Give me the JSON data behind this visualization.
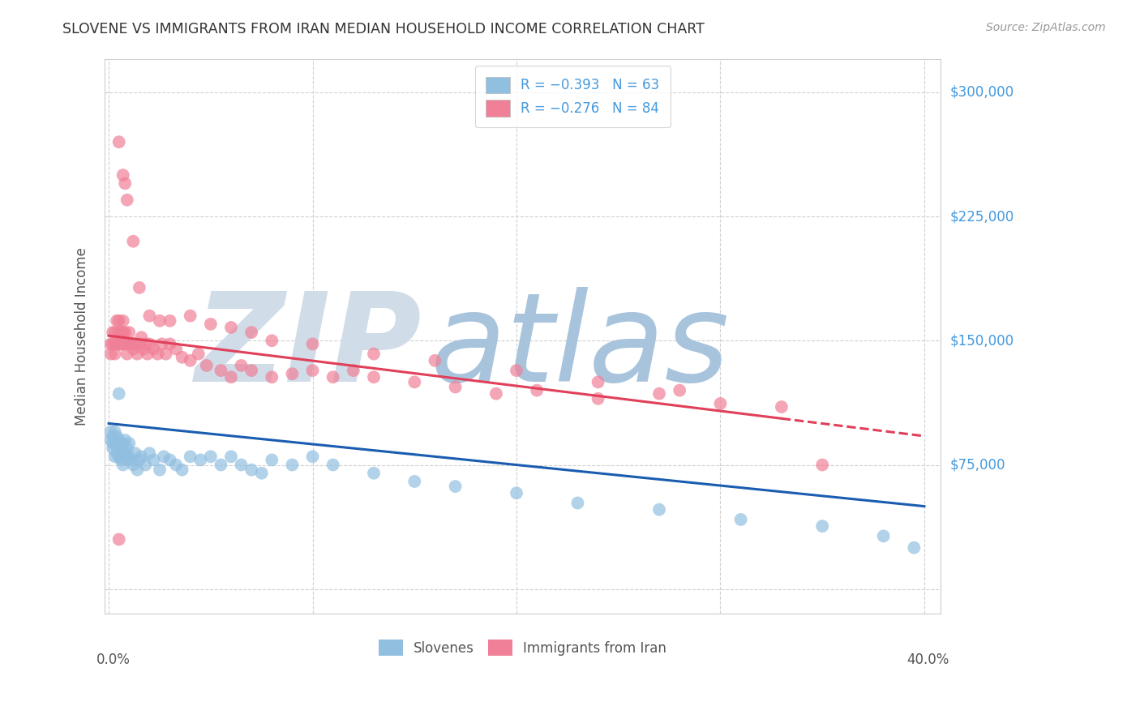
{
  "title": "SLOVENE VS IMMIGRANTS FROM IRAN MEDIAN HOUSEHOLD INCOME CORRELATION CHART",
  "source": "Source: ZipAtlas.com",
  "ylabel": "Median Household Income",
  "yticks": [
    0,
    75000,
    150000,
    225000,
    300000
  ],
  "ytick_labels": [
    "",
    "$75,000",
    "$150,000",
    "$225,000",
    "$300,000"
  ],
  "xlim": [
    -0.002,
    0.408
  ],
  "ylim": [
    -15000,
    320000
  ],
  "slovene_color": "#91bfe0",
  "iran_color": "#f08098",
  "slovene_trend_color": "#1a5db0",
  "iran_trend_color": "#e0405a",
  "iran_trend_dash_color": "#e0405a",
  "watermark_zip": "ZIP",
  "watermark_atlas": "atlas",
  "watermark_color_zip": "#d0dce8",
  "watermark_color_atlas": "#a8c4dc",
  "slovene_x": [
    0.001,
    0.001,
    0.002,
    0.002,
    0.002,
    0.003,
    0.003,
    0.003,
    0.004,
    0.004,
    0.004,
    0.005,
    0.005,
    0.005,
    0.006,
    0.006,
    0.006,
    0.007,
    0.007,
    0.007,
    0.008,
    0.008,
    0.009,
    0.009,
    0.01,
    0.01,
    0.011,
    0.012,
    0.013,
    0.014,
    0.015,
    0.016,
    0.018,
    0.02,
    0.022,
    0.025,
    0.027,
    0.03,
    0.033,
    0.036,
    0.04,
    0.045,
    0.05,
    0.055,
    0.06,
    0.065,
    0.07,
    0.075,
    0.08,
    0.09,
    0.1,
    0.11,
    0.13,
    0.15,
    0.17,
    0.2,
    0.23,
    0.27,
    0.31,
    0.35,
    0.38,
    0.395,
    0.005
  ],
  "slovene_y": [
    95000,
    90000,
    92000,
    88000,
    85000,
    95000,
    88000,
    80000,
    92000,
    88000,
    82000,
    90000,
    85000,
    80000,
    88000,
    85000,
    78000,
    82000,
    88000,
    75000,
    90000,
    82000,
    85000,
    78000,
    80000,
    88000,
    78000,
    75000,
    82000,
    72000,
    78000,
    80000,
    75000,
    82000,
    78000,
    72000,
    80000,
    78000,
    75000,
    72000,
    80000,
    78000,
    80000,
    75000,
    80000,
    75000,
    72000,
    70000,
    78000,
    75000,
    80000,
    75000,
    70000,
    65000,
    62000,
    58000,
    52000,
    48000,
    42000,
    38000,
    32000,
    25000,
    118000
  ],
  "iran_x": [
    0.001,
    0.001,
    0.002,
    0.002,
    0.003,
    0.003,
    0.003,
    0.004,
    0.004,
    0.005,
    0.005,
    0.005,
    0.006,
    0.006,
    0.006,
    0.007,
    0.007,
    0.007,
    0.008,
    0.008,
    0.009,
    0.009,
    0.01,
    0.01,
    0.011,
    0.012,
    0.013,
    0.014,
    0.015,
    0.016,
    0.017,
    0.018,
    0.019,
    0.02,
    0.022,
    0.024,
    0.026,
    0.028,
    0.03,
    0.033,
    0.036,
    0.04,
    0.044,
    0.048,
    0.055,
    0.06,
    0.065,
    0.07,
    0.08,
    0.09,
    0.1,
    0.11,
    0.12,
    0.13,
    0.15,
    0.17,
    0.19,
    0.21,
    0.24,
    0.27,
    0.3,
    0.33,
    0.005,
    0.007,
    0.008,
    0.009,
    0.012,
    0.015,
    0.02,
    0.025,
    0.03,
    0.04,
    0.05,
    0.06,
    0.07,
    0.08,
    0.1,
    0.13,
    0.16,
    0.2,
    0.24,
    0.28,
    0.005,
    0.35
  ],
  "iran_y": [
    148000,
    142000,
    155000,
    148000,
    148000,
    142000,
    155000,
    148000,
    162000,
    155000,
    148000,
    162000,
    148000,
    155000,
    148000,
    162000,
    148000,
    155000,
    148000,
    155000,
    148000,
    142000,
    148000,
    155000,
    148000,
    145000,
    148000,
    142000,
    148000,
    152000,
    145000,
    148000,
    142000,
    148000,
    145000,
    142000,
    148000,
    142000,
    148000,
    145000,
    140000,
    138000,
    142000,
    135000,
    132000,
    128000,
    135000,
    132000,
    128000,
    130000,
    132000,
    128000,
    132000,
    128000,
    125000,
    122000,
    118000,
    120000,
    115000,
    118000,
    112000,
    110000,
    270000,
    250000,
    245000,
    235000,
    210000,
    182000,
    165000,
    162000,
    162000,
    165000,
    160000,
    158000,
    155000,
    150000,
    148000,
    142000,
    138000,
    132000,
    125000,
    120000,
    30000,
    75000
  ],
  "slovene_trend_x0": 0.0,
  "slovene_trend_y0": 100000,
  "slovene_trend_x1": 0.4,
  "slovene_trend_y1": 50000,
  "iran_trend_x0": 0.0,
  "iran_trend_y0": 153000,
  "iran_trend_x1": 0.33,
  "iran_trend_y1": 103000,
  "iran_trend_dash_x0": 0.33,
  "iran_trend_dash_x1": 0.4
}
